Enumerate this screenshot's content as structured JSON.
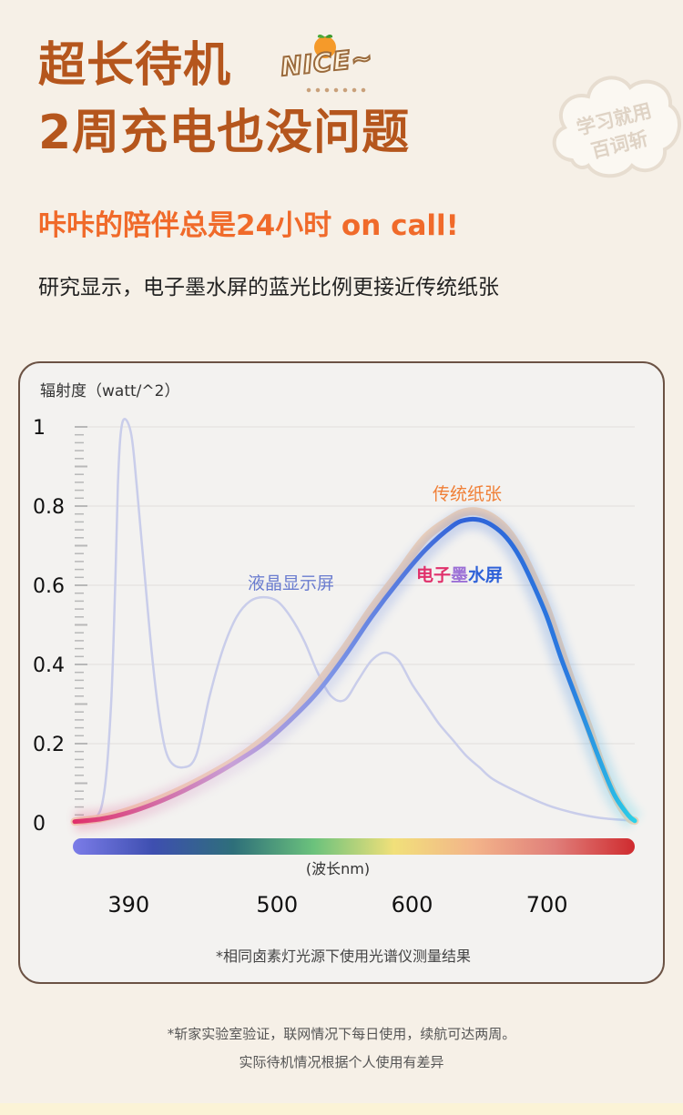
{
  "header": {
    "title_line1": "超长待机",
    "title_line2": "2周充电也没问题",
    "badge_text": "NICE~",
    "badge_icon": "orange-fruit-icon",
    "cloud_text_line1": "学习就用",
    "cloud_text_line2": "百词斩"
  },
  "subtitle": "咔咔的陪伴总是24小时 on call!",
  "description": "研究显示，电子墨水屏的蓝光比例更接近传统纸张",
  "chart_data": {
    "type": "line",
    "ylabel": "辐射度（watt/^2）",
    "xlabel": "(波长nm)",
    "ylim": [
      0,
      1
    ],
    "xlim": [
      350,
      765
    ],
    "y_ticks": [
      {
        "value": 1,
        "label": "1"
      },
      {
        "value": 0.8,
        "label": "0.8"
      },
      {
        "value": 0.6,
        "label": "0.6"
      },
      {
        "value": 0.4,
        "label": "0.4"
      },
      {
        "value": 0.2,
        "label": "0.2"
      },
      {
        "value": 0,
        "label": "0"
      }
    ],
    "x_ticks": [
      {
        "value": 390,
        "label": "390"
      },
      {
        "value": 500,
        "label": "500"
      },
      {
        "value": 600,
        "label": "600"
      },
      {
        "value": 700,
        "label": "700"
      }
    ],
    "grid": true,
    "series": [
      {
        "name": "液晶显示屏",
        "color": "#c9cdea",
        "label_color": "#6a7ccf",
        "x": [
          350,
          365,
          372,
          377,
          380,
          382,
          384,
          387,
          392,
          396,
          402,
          408,
          414,
          420,
          430,
          440,
          450,
          460,
          470,
          480,
          490,
          500,
          510,
          520,
          530,
          540,
          550,
          560,
          570,
          580,
          590,
          600,
          610,
          620,
          630,
          640,
          650,
          660,
          680,
          700,
          720,
          740,
          765
        ],
        "y": [
          0.0,
          0.01,
          0.08,
          0.3,
          0.6,
          0.85,
          0.98,
          1.02,
          0.98,
          0.85,
          0.62,
          0.4,
          0.24,
          0.16,
          0.14,
          0.17,
          0.32,
          0.44,
          0.52,
          0.56,
          0.57,
          0.56,
          0.52,
          0.46,
          0.38,
          0.32,
          0.31,
          0.36,
          0.41,
          0.43,
          0.41,
          0.35,
          0.3,
          0.25,
          0.21,
          0.17,
          0.14,
          0.11,
          0.075,
          0.045,
          0.025,
          0.012,
          0.005
        ]
      },
      {
        "name": "传统纸张",
        "color": "#f3d2b3",
        "label_color": "#f07f36",
        "x": [
          350,
          370,
          390,
          410,
          430,
          450,
          470,
          490,
          510,
          530,
          550,
          570,
          590,
          610,
          630,
          640,
          650,
          660,
          670,
          680,
          690,
          700,
          710,
          720,
          730,
          740,
          750,
          760,
          765
        ],
        "y": [
          0.003,
          0.012,
          0.03,
          0.055,
          0.085,
          0.12,
          0.16,
          0.21,
          0.27,
          0.35,
          0.44,
          0.54,
          0.63,
          0.72,
          0.77,
          0.785,
          0.785,
          0.77,
          0.74,
          0.69,
          0.62,
          0.54,
          0.44,
          0.34,
          0.25,
          0.15,
          0.07,
          0.015,
          0.005
        ]
      },
      {
        "name": "电子墨水屏",
        "color": "#3c6fe0",
        "label_segments": [
          {
            "text": "电子",
            "color": "#e0306b"
          },
          {
            "text": "墨",
            "color": "#9b6fd6"
          },
          {
            "text": "水屏",
            "color": "#2f62d8"
          }
        ],
        "x": [
          350,
          370,
          390,
          410,
          430,
          450,
          470,
          490,
          510,
          530,
          550,
          570,
          590,
          610,
          630,
          640,
          650,
          660,
          670,
          680,
          690,
          700,
          710,
          720,
          730,
          740,
          750,
          760,
          765
        ],
        "y": [
          0.003,
          0.01,
          0.026,
          0.05,
          0.08,
          0.115,
          0.155,
          0.2,
          0.26,
          0.33,
          0.42,
          0.52,
          0.61,
          0.69,
          0.75,
          0.765,
          0.765,
          0.75,
          0.72,
          0.67,
          0.6,
          0.52,
          0.42,
          0.33,
          0.24,
          0.15,
          0.07,
          0.02,
          0.005
        ]
      }
    ],
    "spectrum_bar_colors": [
      "#7b7ce8",
      "#3e4fb0",
      "#2e6f7a",
      "#6bc27c",
      "#f1e07a",
      "#f3b48a",
      "#e07f7a",
      "#cf2b2f"
    ],
    "footnote": "*相同卤素灯光源下使用光谱仪测量结果"
  },
  "footer": {
    "line1": "*斩家实验室验证，联网情况下每日使用，续航可达两周。",
    "line2": "实际待机情况根据个人使用有差异"
  }
}
